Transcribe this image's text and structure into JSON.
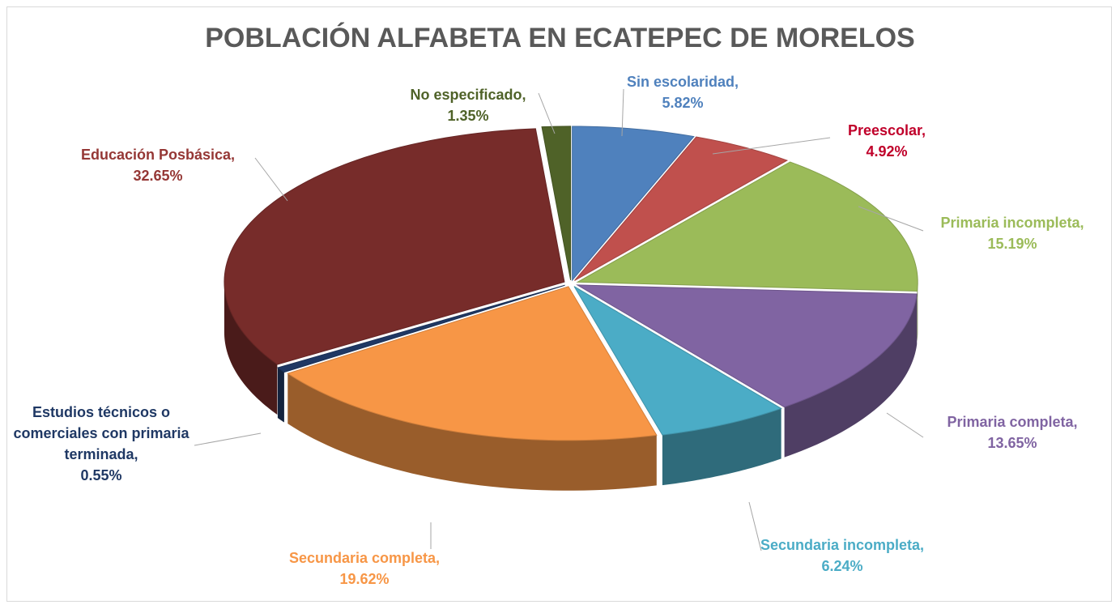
{
  "chart_data": {
    "type": "pie",
    "title": "POBLACIÓN ALFABETA EN ECATEPEC DE MORELOS",
    "categories": [
      "Sin escolaridad,",
      "Preescolar,",
      "Primaria incompleta,",
      "Primaria completa,",
      "Secundaria incompleta,",
      "Secundaria completa,",
      "Estudios técnicos o comerciales con primaria terminada,",
      "Educación Posbásica,",
      "No especificado,"
    ],
    "values": [
      5.82,
      4.92,
      15.19,
      13.65,
      6.24,
      19.62,
      0.55,
      32.65,
      1.35
    ],
    "value_labels": [
      "5.82%",
      "4.92%",
      "15.19%",
      "13.65%",
      "6.24%",
      "19.62%",
      "0.55%",
      "32.65%",
      "1.35%"
    ],
    "colors": [
      "#4f81bd",
      "#c0504d",
      "#9bbb59",
      "#8064a2",
      "#4bacc6",
      "#f79646",
      "#1f3864",
      "#772c2a",
      "#4f6228"
    ],
    "label_colors": [
      "#4f81bd",
      "#c0002a",
      "#9bbb59",
      "#8064a2",
      "#4bacc6",
      "#f79646",
      "#1f3864",
      "#953735",
      "#4f6228"
    ]
  }
}
